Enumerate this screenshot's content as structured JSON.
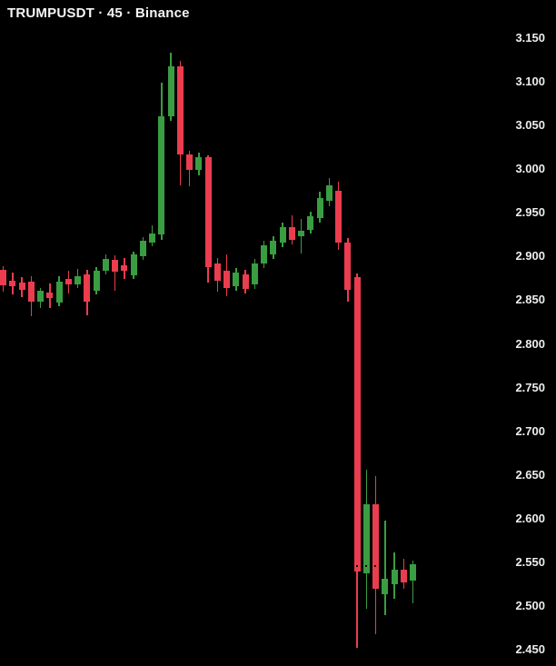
{
  "header": {
    "title": "TRUMPUSDT · 45 · Binance",
    "symbol": "TRUMPUSDT",
    "interval": "45",
    "exchange": "Binance"
  },
  "colors": {
    "background": "#000000",
    "up": "#3a9d42",
    "down": "#eb3d4f",
    "text": "#ededed",
    "price_line_dots": "#000000"
  },
  "y_axis": {
    "labels": [
      "3.150",
      "3.100",
      "3.050",
      "3.000",
      "2.950",
      "2.900",
      "2.850",
      "2.800",
      "2.750",
      "2.700",
      "2.650",
      "2.600",
      "2.550",
      "2.500",
      "2.450"
    ],
    "min": 2.45,
    "max": 3.15,
    "step": 0.05,
    "side": "right"
  },
  "chart_data": {
    "type": "candlestick",
    "title": "TRUMPUSDT · 45 · Binance",
    "symbol": "TRUMPUSDT",
    "interval_minutes": "45",
    "exchange": "Binance",
    "grid": false,
    "legend": false,
    "ylim": [
      2.45,
      3.15
    ],
    "up_color": "#3a9d42",
    "down_color": "#eb3d4f",
    "price_line": {
      "price": 2.546,
      "style": "dotted"
    },
    "candles": [
      {
        "o": 2.885,
        "h": 2.889,
        "l": 2.86,
        "c": 2.867
      },
      {
        "o": 2.872,
        "h": 2.882,
        "l": 2.857,
        "c": 2.866
      },
      {
        "o": 2.87,
        "h": 2.876,
        "l": 2.854,
        "c": 2.862
      },
      {
        "o": 2.871,
        "h": 2.877,
        "l": 2.832,
        "c": 2.848
      },
      {
        "o": 2.848,
        "h": 2.864,
        "l": 2.841,
        "c": 2.861
      },
      {
        "o": 2.859,
        "h": 2.869,
        "l": 2.841,
        "c": 2.853
      },
      {
        "o": 2.847,
        "h": 2.878,
        "l": 2.843,
        "c": 2.871
      },
      {
        "o": 2.874,
        "h": 2.884,
        "l": 2.858,
        "c": 2.868
      },
      {
        "o": 2.868,
        "h": 2.886,
        "l": 2.864,
        "c": 2.877
      },
      {
        "o": 2.88,
        "h": 2.885,
        "l": 2.833,
        "c": 2.848
      },
      {
        "o": 2.861,
        "h": 2.888,
        "l": 2.857,
        "c": 2.884
      },
      {
        "o": 2.884,
        "h": 2.902,
        "l": 2.88,
        "c": 2.897
      },
      {
        "o": 2.896,
        "h": 2.901,
        "l": 2.861,
        "c": 2.883
      },
      {
        "o": 2.89,
        "h": 2.898,
        "l": 2.874,
        "c": 2.884
      },
      {
        "o": 2.878,
        "h": 2.906,
        "l": 2.874,
        "c": 2.902
      },
      {
        "o": 2.9,
        "h": 2.922,
        "l": 2.896,
        "c": 2.918
      },
      {
        "o": 2.916,
        "h": 2.936,
        "l": 2.912,
        "c": 2.926
      },
      {
        "o": 2.925,
        "h": 3.099,
        "l": 2.919,
        "c": 3.061
      },
      {
        "o": 3.061,
        "h": 3.133,
        "l": 3.055,
        "c": 3.118
      },
      {
        "o": 3.118,
        "h": 3.124,
        "l": 2.982,
        "c": 3.017
      },
      {
        "o": 3.017,
        "h": 3.021,
        "l": 2.98,
        "c": 2.999
      },
      {
        "o": 2.999,
        "h": 3.019,
        "l": 2.993,
        "c": 3.014
      },
      {
        "o": 3.014,
        "h": 3.016,
        "l": 2.87,
        "c": 2.888
      },
      {
        "o": 2.892,
        "h": 2.898,
        "l": 2.86,
        "c": 2.872
      },
      {
        "o": 2.884,
        "h": 2.902,
        "l": 2.855,
        "c": 2.864
      },
      {
        "o": 2.866,
        "h": 2.887,
        "l": 2.861,
        "c": 2.882
      },
      {
        "o": 2.88,
        "h": 2.885,
        "l": 2.858,
        "c": 2.863
      },
      {
        "o": 2.868,
        "h": 2.897,
        "l": 2.863,
        "c": 2.892
      },
      {
        "o": 2.892,
        "h": 2.918,
        "l": 2.887,
        "c": 2.913
      },
      {
        "o": 2.902,
        "h": 2.923,
        "l": 2.897,
        "c": 2.918
      },
      {
        "o": 2.916,
        "h": 2.939,
        "l": 2.911,
        "c": 2.934
      },
      {
        "o": 2.934,
        "h": 2.947,
        "l": 2.914,
        "c": 2.919
      },
      {
        "o": 2.923,
        "h": 2.943,
        "l": 2.904,
        "c": 2.93
      },
      {
        "o": 2.931,
        "h": 2.951,
        "l": 2.926,
        "c": 2.946
      },
      {
        "o": 2.944,
        "h": 2.974,
        "l": 2.939,
        "c": 2.967
      },
      {
        "o": 2.964,
        "h": 2.99,
        "l": 2.958,
        "c": 2.981
      },
      {
        "o": 2.975,
        "h": 2.986,
        "l": 2.908,
        "c": 2.916
      },
      {
        "o": 2.916,
        "h": 2.921,
        "l": 2.848,
        "c": 2.862
      },
      {
        "o": 2.876,
        "h": 2.881,
        "l": 2.452,
        "c": 2.539
      },
      {
        "o": 2.537,
        "h": 2.656,
        "l": 2.497,
        "c": 2.616
      },
      {
        "o": 2.616,
        "h": 2.649,
        "l": 2.468,
        "c": 2.52
      },
      {
        "o": 2.513,
        "h": 2.598,
        "l": 2.489,
        "c": 2.531
      },
      {
        "o": 2.525,
        "h": 2.561,
        "l": 2.508,
        "c": 2.542
      },
      {
        "o": 2.542,
        "h": 2.554,
        "l": 2.52,
        "c": 2.527
      },
      {
        "o": 2.529,
        "h": 2.552,
        "l": 2.503,
        "c": 2.548
      }
    ]
  }
}
